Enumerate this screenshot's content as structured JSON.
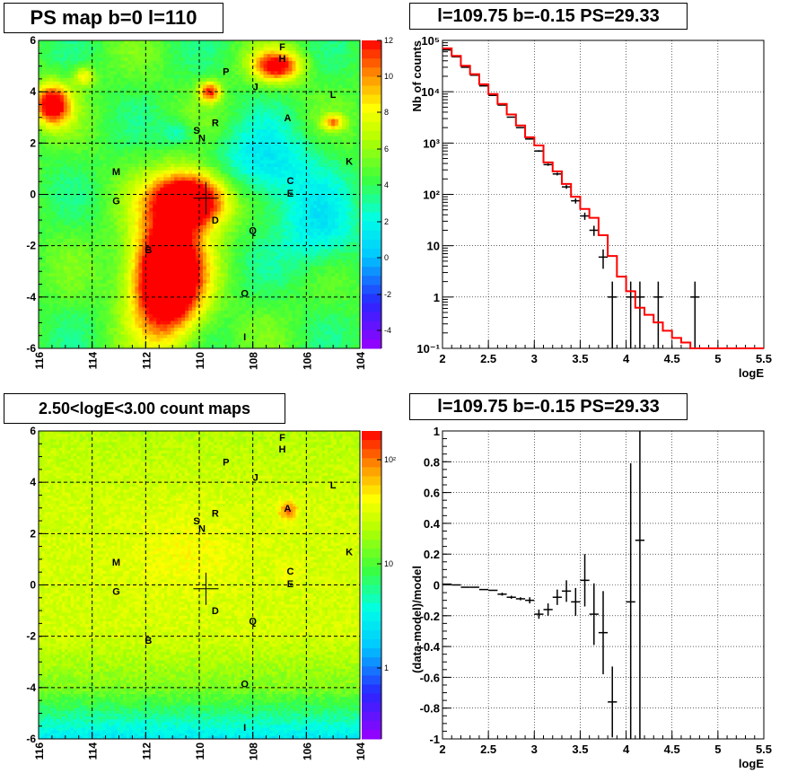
{
  "chart_data": [
    {
      "id": "ps_map",
      "type": "heatmap",
      "title": "PS map b=0 l=110",
      "x_ticks": [
        "116",
        "114",
        "112",
        "110",
        "108",
        "106",
        "104"
      ],
      "y_ticks": [
        "6",
        "4",
        "2",
        "0",
        "-2",
        "-4",
        "-6"
      ],
      "xlim": [
        116,
        104
      ],
      "ylim": [
        -6,
        6
      ],
      "colorbar": {
        "min": -5,
        "max": 12,
        "ticks": [
          "12",
          "10",
          "8",
          "6",
          "4",
          "2",
          "0",
          "-2",
          "-4"
        ]
      },
      "marker": {
        "l": 109.75,
        "b": -0.15
      },
      "sources": [
        {
          "name": "F",
          "l": 106.9,
          "b": 5.75
        },
        {
          "name": "H",
          "l": 106.9,
          "b": 5.3
        },
        {
          "name": "P",
          "l": 109.0,
          "b": 4.8
        },
        {
          "name": "J",
          "l": 107.9,
          "b": 4.2
        },
        {
          "name": "L",
          "l": 105.0,
          "b": 3.9
        },
        {
          "name": "A",
          "l": 106.7,
          "b": 3.0
        },
        {
          "name": "R",
          "l": 109.4,
          "b": 2.8
        },
        {
          "name": "S",
          "l": 110.1,
          "b": 2.5
        },
        {
          "name": "N",
          "l": 109.9,
          "b": 2.2
        },
        {
          "name": "K",
          "l": 104.4,
          "b": 1.3
        },
        {
          "name": "M",
          "l": 113.1,
          "b": 0.9
        },
        {
          "name": "C",
          "l": 106.6,
          "b": 0.55
        },
        {
          "name": "E",
          "l": 106.6,
          "b": 0.05
        },
        {
          "name": "G",
          "l": 113.1,
          "b": -0.25
        },
        {
          "name": "D",
          "l": 109.4,
          "b": -1.0
        },
        {
          "name": "Q",
          "l": 108.0,
          "b": -1.4
        },
        {
          "name": "B",
          "l": 111.9,
          "b": -2.15
        },
        {
          "name": "O",
          "l": 108.3,
          "b": -3.85
        },
        {
          "name": "I",
          "l": 108.3,
          "b": -5.55
        }
      ]
    },
    {
      "id": "spectrum",
      "type": "line",
      "title": "l=109.75 b=-0.15 PS=29.33",
      "xlabel": "logE",
      "ylabel": "Nb of counts",
      "xlim": [
        2,
        5.5
      ],
      "ylim": [
        0.1,
        100000
      ],
      "ylog": true,
      "x_ticks": [
        "2",
        "2.5",
        "3",
        "3.5",
        "4",
        "4.5",
        "5",
        "5.5"
      ],
      "y_ticks": [
        "10⁵",
        "10⁴",
        "10³",
        "10²",
        "10",
        "1",
        "10⁻¹"
      ],
      "bin_width": 0.1,
      "model_bin_lo": [
        2.0,
        2.1,
        2.2,
        2.3,
        2.4,
        2.5,
        2.6,
        2.7,
        2.8,
        2.9,
        3.0,
        3.1,
        3.2,
        3.3,
        3.4,
        3.5,
        3.6,
        3.7,
        3.8,
        3.9,
        4.0,
        4.1,
        4.2,
        4.3,
        4.4,
        4.5,
        4.6,
        4.7,
        4.8,
        4.9,
        5.0,
        5.1,
        5.2,
        5.3,
        5.4
      ],
      "model_values": [
        70000,
        50000,
        32000,
        22000,
        14000,
        9000,
        5800,
        3600,
        2200,
        1300,
        900,
        420,
        280,
        160,
        90,
        52,
        35,
        16,
        6.3,
        2.5,
        1.3,
        0.62,
        0.45,
        0.32,
        0.22,
        0.16,
        0.13,
        0.1,
        0.1,
        0.1,
        0.1,
        0.1,
        0.1,
        0.1,
        0.1
      ],
      "data_points": [
        {
          "x": 2.05,
          "y": 65000
        },
        {
          "x": 2.15,
          "y": 48000
        },
        {
          "x": 2.25,
          "y": 30000
        },
        {
          "x": 2.35,
          "y": 21000
        },
        {
          "x": 2.45,
          "y": 13000
        },
        {
          "x": 2.55,
          "y": 8500
        },
        {
          "x": 2.65,
          "y": 5500
        },
        {
          "x": 2.75,
          "y": 3200
        },
        {
          "x": 2.85,
          "y": 2000
        },
        {
          "x": 2.95,
          "y": 1200
        },
        {
          "x": 3.05,
          "y": 700
        },
        {
          "x": 3.15,
          "y": 380
        },
        {
          "x": 3.25,
          "y": 250
        },
        {
          "x": 3.35,
          "y": 140
        },
        {
          "x": 3.45,
          "y": 75
        },
        {
          "x": 3.55,
          "y": 38
        },
        {
          "x": 3.65,
          "y": 20
        },
        {
          "x": 3.75,
          "y": 6
        },
        {
          "x": 3.85,
          "y": 1
        },
        {
          "x": 4.05,
          "y": 1
        },
        {
          "x": 4.15,
          "y": 1
        },
        {
          "x": 4.35,
          "y": 1
        },
        {
          "x": 4.75,
          "y": 1
        }
      ],
      "series_colors": {
        "model": "#ff0000",
        "data": "#000000"
      }
    },
    {
      "id": "count_map",
      "type": "heatmap",
      "title": "2.50<logE<3.00 count maps",
      "x_ticks": [
        "116",
        "114",
        "112",
        "110",
        "108",
        "106",
        "104"
      ],
      "y_ticks": [
        "6",
        "4",
        "2",
        "0",
        "-2",
        "-4",
        "-6"
      ],
      "xlim": [
        116,
        104
      ],
      "ylim": [
        -6,
        6
      ],
      "colorbar": {
        "scale": "log",
        "ticks": [
          "10²",
          "10",
          "1"
        ]
      },
      "marker": {
        "l": 109.75,
        "b": -0.15
      }
    },
    {
      "id": "residuals",
      "type": "scatter",
      "title": "l=109.75 b=-0.15 PS=29.33",
      "xlabel": "logE",
      "ylabel": "(data-model)/model",
      "xlim": [
        2,
        5.5
      ],
      "ylim": [
        -1,
        1
      ],
      "x_ticks": [
        "2",
        "2.5",
        "3",
        "3.5",
        "4",
        "4.5",
        "5",
        "5.5"
      ],
      "y_ticks": [
        "1",
        "0.8",
        "0.6",
        "0.4",
        "0.2",
        "0",
        "-0.2",
        "-0.4",
        "-0.6",
        "-0.8",
        "-1"
      ],
      "points": [
        {
          "x": 2.05,
          "y": 0.005,
          "err": 0
        },
        {
          "x": 2.15,
          "y": 0.0,
          "err": 0
        },
        {
          "x": 2.25,
          "y": -0.015,
          "err": 0
        },
        {
          "x": 2.35,
          "y": -0.015,
          "err": 0
        },
        {
          "x": 2.45,
          "y": -0.03,
          "err": 0
        },
        {
          "x": 2.55,
          "y": -0.035,
          "err": 0
        },
        {
          "x": 2.65,
          "y": -0.06,
          "err": 0.01
        },
        {
          "x": 2.75,
          "y": -0.08,
          "err": 0.01
        },
        {
          "x": 2.85,
          "y": -0.09,
          "err": 0.01
        },
        {
          "x": 2.95,
          "y": -0.1,
          "err": 0.02
        },
        {
          "x": 3.05,
          "y": -0.19,
          "err": 0.03
        },
        {
          "x": 3.15,
          "y": -0.16,
          "err": 0.04
        },
        {
          "x": 3.25,
          "y": -0.08,
          "err": 0.05
        },
        {
          "x": 3.35,
          "y": -0.04,
          "err": 0.07
        },
        {
          "x": 3.45,
          "y": -0.11,
          "err": 0.09
        },
        {
          "x": 3.55,
          "y": 0.03,
          "err": 0.17
        },
        {
          "x": 3.65,
          "y": -0.19,
          "err": 0.2
        },
        {
          "x": 3.75,
          "y": -0.31,
          "err": 0.27
        },
        {
          "x": 3.85,
          "y": -0.76,
          "err": 0.23
        },
        {
          "x": 4.05,
          "y": -0.11,
          "err": 0.9
        },
        {
          "x": 4.15,
          "y": 0.29,
          "err": 1.4
        }
      ]
    }
  ]
}
